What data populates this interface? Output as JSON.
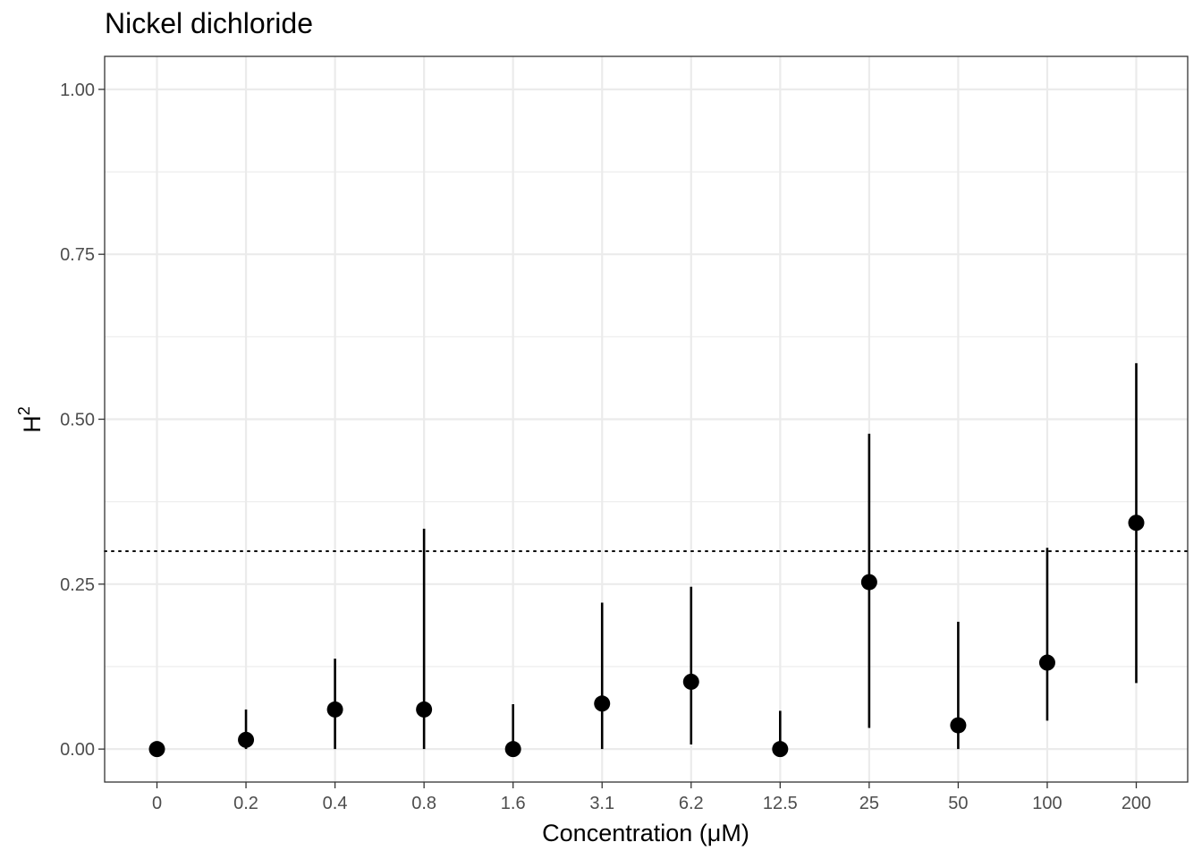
{
  "chart_data": {
    "type": "scatter",
    "title": "Nickel dichloride",
    "xlabel": "Concentration (μM)",
    "ylabel_base": "H",
    "ylabel_superscript": "2",
    "categories": [
      "0",
      "0.2",
      "0.4",
      "0.8",
      "1.6",
      "3.1",
      "6.2",
      "12.5",
      "25",
      "50",
      "100",
      "200"
    ],
    "values": [
      0.0,
      0.014,
      0.06,
      0.06,
      0.0,
      0.069,
      0.102,
      0.0,
      0.253,
      0.036,
      0.131,
      0.343
    ],
    "lower": [
      0.0,
      0.0,
      0.0,
      0.0,
      0.0,
      0.0,
      0.007,
      0.0,
      0.032,
      0.0,
      0.043,
      0.1
    ],
    "upper": [
      0.0,
      0.06,
      0.137,
      0.334,
      0.068,
      0.222,
      0.246,
      0.058,
      0.478,
      0.193,
      0.305,
      0.585
    ],
    "reference_line": {
      "y": 0.3,
      "style": "dotted"
    },
    "ylim": [
      -0.05,
      1.05
    ],
    "yticks": [
      "0.00",
      "0.25",
      "0.50",
      "0.75",
      "1.00"
    ],
    "ytick_values": [
      0,
      0.25,
      0.5,
      0.75,
      1.0
    ],
    "grid": true,
    "colors": {
      "points": "#000000",
      "grid": "#ebebeb",
      "panel_border": "#333333"
    }
  }
}
